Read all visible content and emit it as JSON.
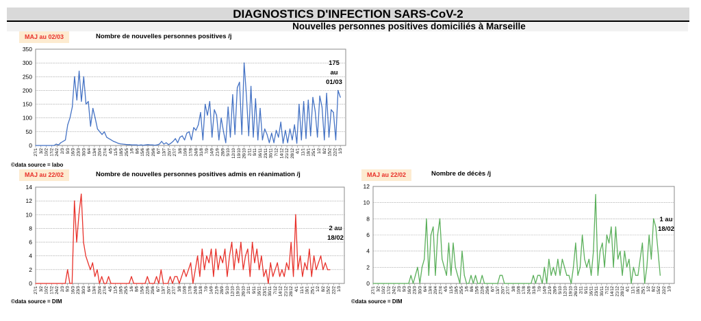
{
  "header": {
    "title": "DIAGNOSTICS D'INFECTION SARS-CoV-2",
    "subtitle": "Nouvelles personnes positives domiciliés à Marseille"
  },
  "x_ticks": [
    "27/1",
    "3/2",
    "10/2",
    "17/2",
    "24/2",
    "2/3",
    "9/3",
    "16/3",
    "23/3",
    "30/3",
    "6/4",
    "13/4",
    "20/4",
    "27/4",
    "4/5",
    "11/5",
    "18/5",
    "25/5",
    "1/6",
    "8/6",
    "15/6",
    "22/6",
    "29/6",
    "6/7",
    "13/7",
    "20/7",
    "27/7",
    "3/8",
    "10/8",
    "17/8",
    "24/8",
    "31/8",
    "7/9",
    "14/9",
    "21/9",
    "28/9",
    "5/10",
    "12/10",
    "19/10",
    "26/10",
    "2/11",
    "9/11",
    "16/11",
    "23/11",
    "30/11",
    "7/12",
    "14/12",
    "21/12",
    "28/12",
    "4/1",
    "11/1",
    "18/1",
    "25/1",
    "1/2",
    "8/2",
    "15/2",
    "22/2",
    "1/3"
  ],
  "chart_data": [
    {
      "type": "line",
      "title": "Nombre de nouvelles personnes positives /j",
      "update_badge": "MAJ au 02/03",
      "source": "©data source = labo",
      "annotation": [
        "175",
        "au",
        "01/03"
      ],
      "color": "#4472c4",
      "ylim": [
        0,
        350
      ],
      "yticks": [
        0,
        50,
        100,
        150,
        200,
        250,
        300,
        350
      ],
      "x_step_days": 3,
      "values": [
        0,
        0,
        0,
        0,
        0,
        0,
        0,
        0,
        0,
        5,
        2,
        10,
        15,
        20,
        75,
        100,
        140,
        250,
        165,
        270,
        160,
        250,
        150,
        160,
        70,
        135,
        100,
        60,
        50,
        40,
        50,
        30,
        25,
        20,
        15,
        12,
        8,
        6,
        5,
        4,
        3,
        3,
        2,
        2,
        2,
        1,
        2,
        1,
        2,
        3,
        2,
        2,
        1,
        2,
        5,
        15,
        5,
        10,
        3,
        8,
        15,
        25,
        10,
        30,
        35,
        20,
        45,
        50,
        20,
        65,
        55,
        75,
        120,
        20,
        150,
        110,
        160,
        30,
        130,
        110,
        20,
        100,
        50,
        10,
        140,
        30,
        185,
        40,
        210,
        230,
        40,
        300,
        180,
        35,
        215,
        30,
        170,
        20,
        135,
        20,
        60,
        40,
        10,
        45,
        10,
        55,
        30,
        85,
        8,
        55,
        10,
        60,
        20,
        75,
        8,
        150,
        20,
        160,
        25,
        165,
        35,
        175,
        125,
        30,
        180,
        140,
        20,
        190,
        30,
        130,
        120,
        20,
        200,
        175
      ]
    },
    {
      "type": "line",
      "title": "Nombre de nouvelles personnes positives admis en réanimation /j",
      "update_badge": "MAJ au 22/02",
      "source": "©data source = DIM",
      "annotation": [
        "2 au",
        "18/02"
      ],
      "color": "#e8312a",
      "ylim": [
        0,
        14
      ],
      "yticks": [
        0,
        2,
        4,
        6,
        8,
        10,
        12,
        14
      ],
      "x_step_days": 3,
      "values": [
        0,
        0,
        0,
        0,
        0,
        0,
        0,
        0,
        0,
        0,
        0,
        0,
        0,
        0,
        2,
        0,
        0,
        12,
        6,
        10,
        13,
        6,
        4,
        3,
        2,
        3,
        1,
        2,
        0,
        1,
        0,
        0,
        1,
        0,
        0,
        0,
        0,
        0,
        0,
        0,
        0,
        0,
        1,
        0,
        0,
        0,
        0,
        0,
        0,
        1,
        0,
        0,
        0,
        1,
        0,
        2,
        0,
        0,
        0,
        1,
        0,
        1,
        1,
        0,
        1,
        2,
        1,
        2,
        3,
        0,
        2,
        4,
        1,
        5,
        2,
        4,
        3,
        5,
        1,
        5,
        2,
        4,
        3,
        5,
        1,
        4,
        6,
        2,
        5,
        3,
        6,
        2,
        4,
        5,
        1,
        6,
        3,
        5,
        2,
        4,
        1,
        2,
        0,
        3,
        1,
        2,
        3,
        1,
        2,
        1,
        3,
        2,
        6,
        1,
        10,
        2,
        4,
        1,
        3,
        2,
        5,
        1,
        4,
        2,
        3,
        4,
        2,
        3,
        2,
        2
      ]
    },
    {
      "type": "line",
      "title": "Nombre de décès /j",
      "update_badge": "MAJ au 22/02",
      "source": "©data source = DIM",
      "annotation": [
        "1 au",
        "18/02"
      ],
      "color": "#5aaf5a",
      "ylim": [
        0,
        12
      ],
      "yticks": [
        0,
        2,
        4,
        6,
        8,
        10,
        12
      ],
      "x_step_days": 3,
      "values": [
        0,
        0,
        0,
        0,
        0,
        0,
        0,
        0,
        0,
        0,
        0,
        0,
        0,
        0,
        0,
        0,
        0,
        1,
        0,
        1,
        2,
        0,
        2,
        3,
        8,
        1,
        6,
        7,
        1,
        6,
        8,
        3,
        2,
        1,
        5,
        1,
        5,
        2,
        1,
        0,
        4,
        1,
        0,
        0,
        1,
        0,
        1,
        0,
        0,
        1,
        0,
        0,
        0,
        0,
        0,
        0,
        0,
        1,
        1,
        0,
        0,
        0,
        0,
        0,
        0,
        0,
        0,
        0,
        0,
        0,
        0,
        0,
        1,
        0,
        1,
        1,
        0,
        2,
        0,
        3,
        1,
        2,
        1,
        3,
        1,
        3,
        2,
        1,
        1,
        0,
        2,
        5,
        1,
        2,
        6,
        3,
        2,
        3,
        1,
        4,
        11,
        1,
        4,
        5,
        2,
        6,
        5,
        7,
        2,
        7,
        3,
        4,
        1,
        4,
        2,
        3,
        0,
        2,
        1,
        1,
        3,
        5,
        0,
        2,
        6,
        3,
        8,
        7,
        4,
        1
      ]
    }
  ]
}
